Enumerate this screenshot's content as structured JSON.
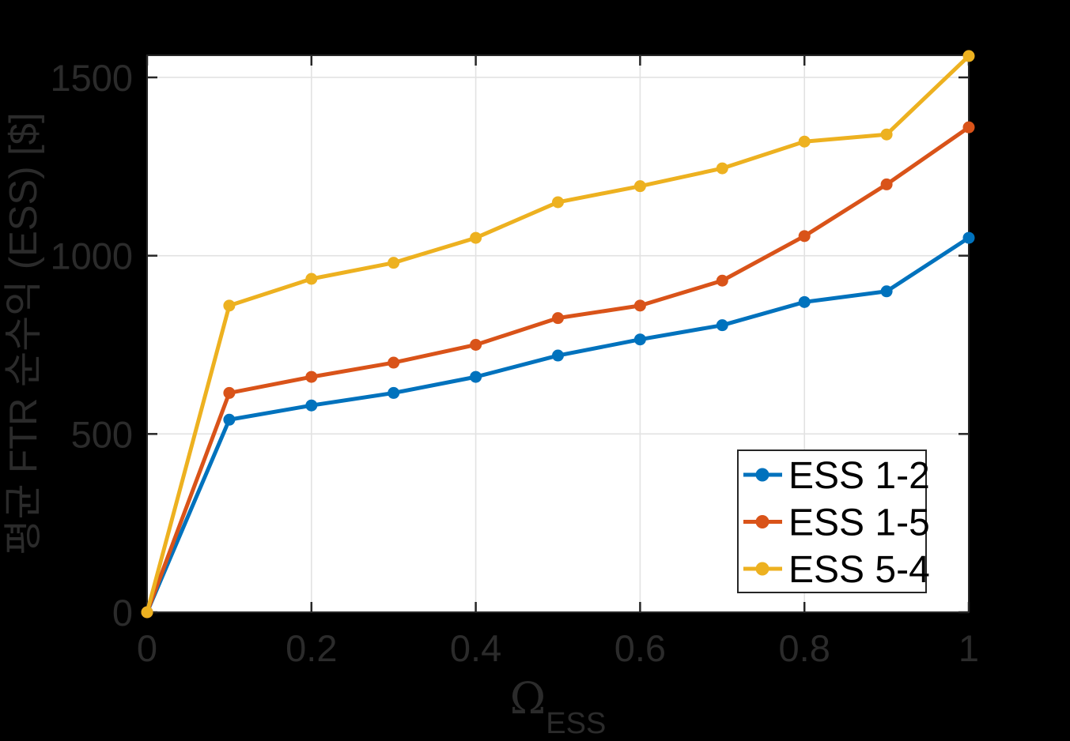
{
  "figure": {
    "background": "#000000",
    "plot_background": "#ffffff",
    "axis_color": "#262626",
    "grid_color": "#e2e2e2",
    "legend": {
      "background": "#ffffff",
      "border_color": "#262626",
      "text_color": "#000000",
      "position": "inside-lower-right"
    }
  },
  "chart_data": {
    "type": "line",
    "title": "",
    "xlabel_symbol": "Ω",
    "xlabel_subscript": "ESS",
    "ylabel": "평균 FTR 순수익 (ESS) [$]",
    "x": [
      0,
      0.1,
      0.2,
      0.3,
      0.4,
      0.5,
      0.6,
      0.7,
      0.8,
      0.9,
      1
    ],
    "series": [
      {
        "name": "ESS 1-2",
        "color": "#0072BD",
        "values": [
          0,
          540,
          580,
          615,
          660,
          720,
          765,
          805,
          870,
          900,
          1050
        ]
      },
      {
        "name": "ESS 1-5",
        "color": "#D95319",
        "values": [
          0,
          615,
          660,
          700,
          750,
          825,
          860,
          930,
          1055,
          1200,
          1360
        ]
      },
      {
        "name": "ESS 5-4",
        "color": "#EDB120",
        "values": [
          0,
          860,
          935,
          980,
          1050,
          1150,
          1195,
          1245,
          1320,
          1340,
          1560
        ]
      }
    ],
    "xlim": [
      0,
      1
    ],
    "ylim": [
      0,
      1562
    ],
    "xticks": [
      0,
      0.2,
      0.4,
      0.6,
      0.8,
      1
    ],
    "xtick_labels": [
      "0",
      "0.2",
      "0.4",
      "0.6",
      "0.8",
      "1"
    ],
    "yticks": [
      0,
      500,
      1000,
      1500
    ],
    "ytick_labels": [
      "0",
      "500",
      "1000",
      "1500"
    ],
    "grid": true,
    "marker": "circle",
    "legend_entries": [
      "ESS 1-2",
      "ESS 1-5",
      "ESS 5-4"
    ]
  }
}
